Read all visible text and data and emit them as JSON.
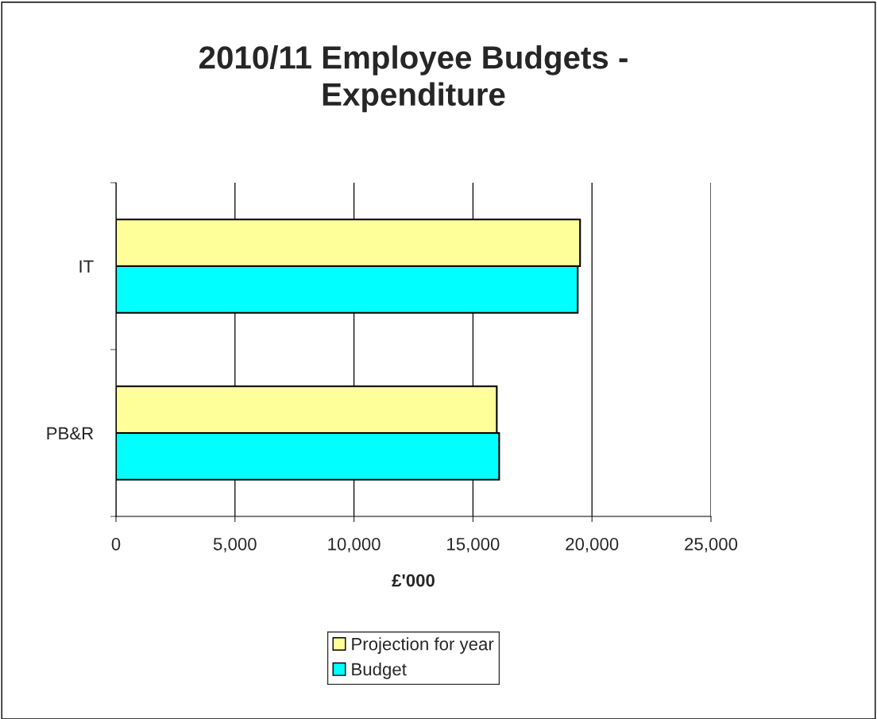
{
  "chart_data": {
    "type": "bar",
    "orientation": "horizontal",
    "title": "2010/11 Employee Budgets -\nExpenditure",
    "xlabel": "£'000",
    "categories": [
      "IT",
      "PB&R"
    ],
    "series": [
      {
        "name": "Projection for year",
        "color": "#ffff99",
        "values": [
          19500,
          16000
        ]
      },
      {
        "name": "Budget",
        "color": "#00ffff",
        "values": [
          19400,
          16100
        ]
      }
    ],
    "xlim": [
      0,
      25000
    ],
    "xticks": [
      {
        "value": 0,
        "label": "0"
      },
      {
        "value": 5000,
        "label": "5,000"
      },
      {
        "value": 10000,
        "label": "10,000"
      },
      {
        "value": 15000,
        "label": "15,000"
      },
      {
        "value": 20000,
        "label": "20,000"
      },
      {
        "value": 25000,
        "label": "25,000"
      }
    ],
    "grid": "x",
    "legend": "bottom"
  }
}
